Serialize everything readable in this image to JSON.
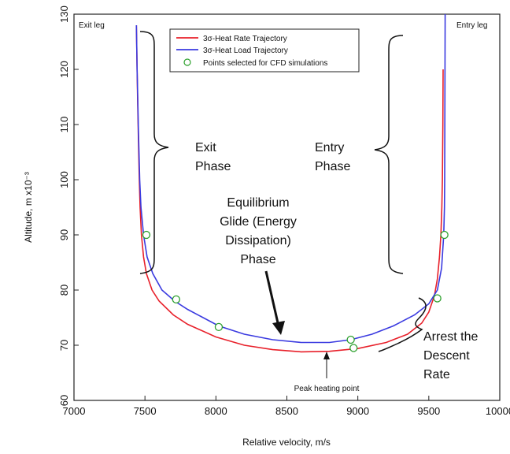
{
  "chart_data": {
    "type": "line",
    "title": "",
    "xlabel": "Relative velocity, m/s",
    "ylabel": "Altitude, m x10⁻³",
    "xlim": [
      7000,
      10000
    ],
    "ylim": [
      60,
      130
    ],
    "xticks": [
      7000,
      7500,
      8000,
      8500,
      9000,
      9500,
      10000
    ],
    "yticks": [
      60,
      70,
      80,
      90,
      100,
      110,
      120,
      130
    ],
    "grid": false,
    "legend_position": "top-center",
    "series": [
      {
        "name": "3σ-Heat Rate Trajectory",
        "color": "#e8202a",
        "points": [
          [
            7440,
            128
          ],
          [
            7445,
            120
          ],
          [
            7448,
            115
          ],
          [
            7452,
            110
          ],
          [
            7456,
            105
          ],
          [
            7460,
            100
          ],
          [
            7466,
            95
          ],
          [
            7475,
            90
          ],
          [
            7490,
            86
          ],
          [
            7510,
            83
          ],
          [
            7550,
            80
          ],
          [
            7600,
            78
          ],
          [
            7700,
            75.5
          ],
          [
            7800,
            73.8
          ],
          [
            8000,
            71.5
          ],
          [
            8200,
            70
          ],
          [
            8400,
            69.2
          ],
          [
            8600,
            68.8
          ],
          [
            8800,
            68.9
          ],
          [
            9000,
            69.4
          ],
          [
            9200,
            70.5
          ],
          [
            9350,
            72
          ],
          [
            9450,
            74
          ],
          [
            9500,
            76
          ],
          [
            9540,
            79
          ],
          [
            9560,
            82
          ],
          [
            9575,
            86
          ],
          [
            9585,
            90
          ],
          [
            9592,
            95
          ],
          [
            9596,
            100
          ],
          [
            9599,
            110
          ],
          [
            9601,
            120
          ]
        ]
      },
      {
        "name": "3σ-Heat Load Trajectory",
        "color": "#3a3ae0",
        "points": [
          [
            7440,
            128
          ],
          [
            7445,
            120
          ],
          [
            7449,
            115
          ],
          [
            7453,
            110
          ],
          [
            7458,
            105
          ],
          [
            7463,
            100
          ],
          [
            7472,
            95
          ],
          [
            7490,
            90
          ],
          [
            7515,
            86
          ],
          [
            7555,
            83
          ],
          [
            7620,
            80
          ],
          [
            7710,
            78
          ],
          [
            7800,
            76.5
          ],
          [
            8020,
            73.5
          ],
          [
            8200,
            72
          ],
          [
            8400,
            71
          ],
          [
            8600,
            70.5
          ],
          [
            8800,
            70.5
          ],
          [
            8950,
            71
          ],
          [
            9100,
            72
          ],
          [
            9250,
            73.5
          ],
          [
            9400,
            75.5
          ],
          [
            9500,
            77.5
          ],
          [
            9560,
            80
          ],
          [
            9590,
            84
          ],
          [
            9605,
            90
          ],
          [
            9610,
            95
          ],
          [
            9612,
            100
          ],
          [
            9613,
            110
          ],
          [
            9614,
            120
          ],
          [
            9615,
            130
          ]
        ]
      },
      {
        "name": "Points selected for CFD simulations",
        "color": "#2ca02c",
        "marker": "open-circle",
        "points": [
          [
            7510,
            90
          ],
          [
            7720,
            78.3
          ],
          [
            8020,
            73.3
          ],
          [
            8950,
            71
          ],
          [
            8970,
            69.5
          ],
          [
            9560,
            78.5
          ],
          [
            9610,
            90
          ]
        ]
      }
    ],
    "annotations": [
      {
        "text": "Exit leg"
      },
      {
        "text": "Entry leg"
      },
      {
        "lines": [
          "Exit",
          "Phase"
        ]
      },
      {
        "lines": [
          "Entry",
          "Phase"
        ]
      },
      {
        "lines": [
          "Equilibrium",
          "Glide (Energy",
          "Dissipation)",
          "Phase"
        ]
      },
      {
        "lines": [
          "Arrest the",
          "Descent",
          "Rate"
        ]
      },
      {
        "text": "Peak heating point"
      }
    ]
  }
}
